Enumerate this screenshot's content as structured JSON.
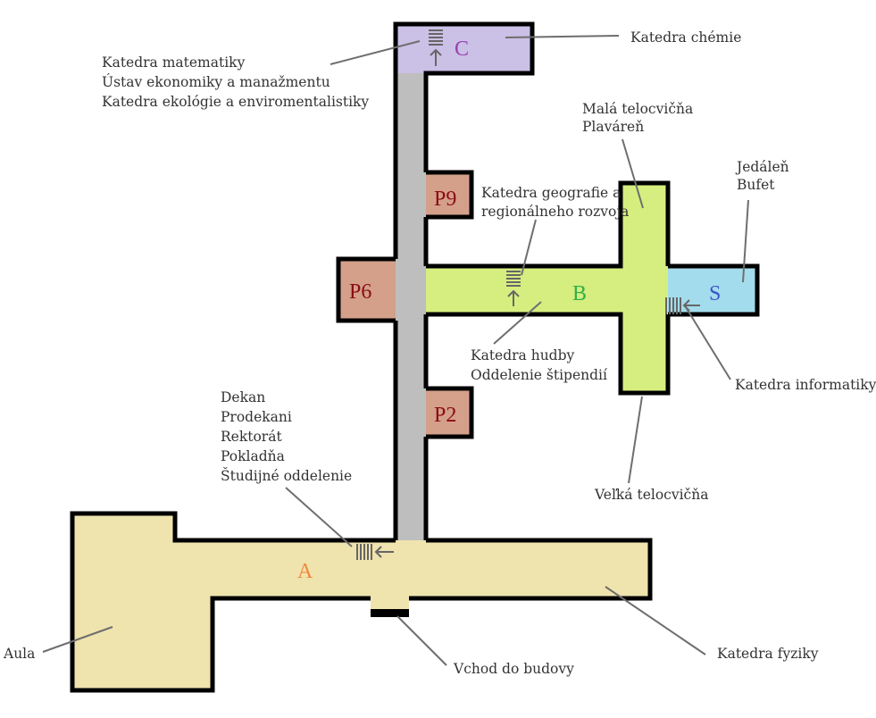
{
  "buildings": [
    {
      "id": "A",
      "label": "A",
      "color": "#efe3ae",
      "label_color": "#f08a3c"
    },
    {
      "id": "B",
      "label": "B",
      "color": "#d6ee7f",
      "label_color": "#2eb04a"
    },
    {
      "id": "C",
      "label": "C",
      "color": "#cbc0e6",
      "label_color": "#9b3fb0"
    },
    {
      "id": "S",
      "label": "S",
      "color": "#a3dcec",
      "label_color": "#3a55c8"
    },
    {
      "id": "P9",
      "label": "P9",
      "color": "#d4a08a",
      "label_color": "#8b0b14"
    },
    {
      "id": "P6",
      "label": "P6",
      "color": "#d4a08a",
      "label_color": "#8b0b14"
    },
    {
      "id": "P2",
      "label": "P2",
      "color": "#d4a08a",
      "label_color": "#8b0b14"
    }
  ],
  "corridor_color": "#bebebe",
  "wall_color": "#000000",
  "labels": {
    "chemie": "Katedra chémie",
    "mat_1": "Katedra matematiky",
    "mat_2": "Ústav ekonomiky a manažmentu",
    "mat_3": "Katedra ekológie a enviromentalistiky",
    "tel_1": "Malá telocvičňa",
    "tel_2": "Plaváreň",
    "jed_1": "Jedáleň",
    "jed_2": "Bufet",
    "geo_1": "Katedra geografie a",
    "geo_2": "regionálneho rozvoja",
    "hud_1": "Katedra hudby",
    "hud_2": "Oddelenie štipendií",
    "inf": "Katedra informatiky",
    "dek_1": "Dekan",
    "dek_2": "Prodekani",
    "dek_3": "Rektorát",
    "dek_4": "Pokladňa",
    "dek_5": "Študijné oddelenie",
    "vel": "Veľká telocvičňa",
    "aula": "Aula",
    "vchod": "Vchod do budovy",
    "fyz": "Katedra fyziky"
  }
}
